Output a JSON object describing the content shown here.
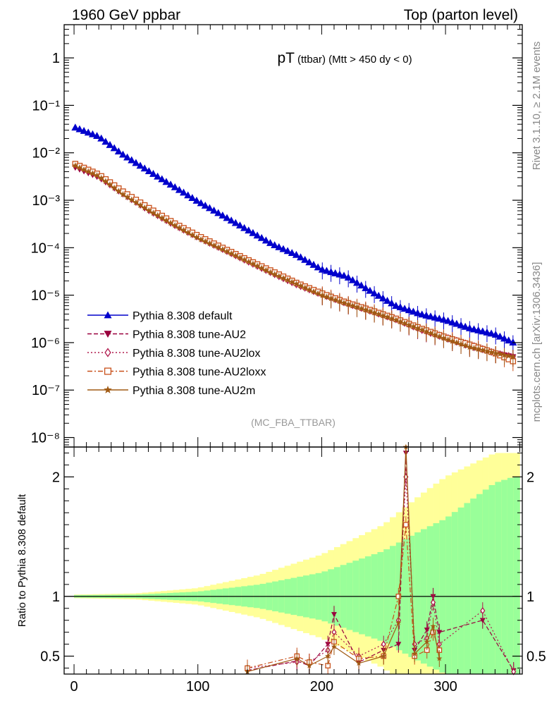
{
  "header": {
    "left": "1960 GeV ppbar",
    "right": "Top (parton level)"
  },
  "side_labels": {
    "rivet": "Rivet 3.1.10, ≥ 2.1M events",
    "mcplots": "mcplots.cern.ch [arXiv:1306.3436]"
  },
  "chart_data": [
    {
      "type": "line",
      "panel": "main",
      "title_main": "pT",
      "title_sub": "(ttbar) (Mtt > 450 dy < 0)",
      "analysis_label": "(MC_FBA_TTBAR)",
      "xlabel": "",
      "ylabel": "",
      "xlim": [
        -8,
        362
      ],
      "ylim_log10": [
        -8.2,
        0.7
      ],
      "log_y": true,
      "y_tick_labels": [
        "1",
        "10⁻¹",
        "10⁻²",
        "10⁻³",
        "10⁻⁴",
        "10⁻⁵",
        "10⁻⁶",
        "10⁻⁷",
        "10⁻⁸"
      ],
      "legend_position": "bottom-left",
      "series": [
        {
          "name": "Pythia 8.308 default",
          "color": "#0000cc",
          "style": "solid",
          "marker": "triangle-up",
          "x": [
            0,
            20,
            40,
            60,
            80,
            100,
            120,
            140,
            160,
            180,
            200,
            220,
            240,
            260,
            280,
            300,
            320,
            340,
            355
          ],
          "y": [
            0.035,
            0.022,
            0.009,
            0.0042,
            0.002,
            0.00095,
            0.00048,
            0.00024,
            0.00012,
            7e-05,
            3.5e-05,
            2.5e-05,
            1.2e-05,
            6e-06,
            4e-06,
            3e-06,
            2e-06,
            1.5e-06,
            1e-06
          ]
        },
        {
          "name": "Pythia 8.308 tune-AU2",
          "color": "#99003d",
          "style": "dashed",
          "marker": "triangle-down",
          "x": [
            0,
            20,
            40,
            60,
            80,
            100,
            120,
            140,
            160,
            180,
            200,
            220,
            240,
            260,
            280,
            300,
            320,
            340,
            355
          ],
          "y": [
            0.005,
            0.003,
            0.0013,
            0.0006,
            0.0003,
            0.00016,
            9e-05,
            5e-05,
            2.8e-05,
            1.6e-05,
            1e-05,
            6.5e-06,
            4.5e-06,
            3e-06,
            1.8e-06,
            1.2e-06,
            8e-07,
            6e-07,
            5e-07
          ]
        },
        {
          "name": "Pythia 8.308 tune-AU2lox",
          "color": "#b01a4d",
          "style": "dotted",
          "marker": "diamond",
          "x": [
            0,
            20,
            40,
            60,
            80,
            100,
            120,
            140,
            160,
            180,
            200,
            220,
            240,
            260,
            280,
            300,
            320,
            340,
            355
          ],
          "y": [
            0.0058,
            0.0033,
            0.0014,
            0.00065,
            0.00032,
            0.00017,
            9.5e-05,
            5.3e-05,
            3e-05,
            1.7e-05,
            1.05e-05,
            6.8e-06,
            4.6e-06,
            3.1e-06,
            1.9e-06,
            1.3e-06,
            9e-07,
            6e-07,
            5e-07
          ]
        },
        {
          "name": "Pythia 8.308 tune-AU2loxx",
          "color": "#c8501a",
          "style": "dashdot",
          "marker": "square",
          "x": [
            0,
            20,
            40,
            60,
            80,
            100,
            120,
            140,
            160,
            180,
            200,
            220,
            240,
            260,
            280,
            300,
            320,
            340,
            355
          ],
          "y": [
            0.006,
            0.0035,
            0.0015,
            0.0007,
            0.00034,
            0.00018,
            0.0001,
            5.6e-05,
            3.2e-05,
            1.8e-05,
            1.1e-05,
            7e-06,
            4.8e-06,
            3.2e-06,
            2e-06,
            1.3e-06,
            9e-07,
            6e-07,
            4e-07
          ]
        },
        {
          "name": "Pythia 8.308 tune-AU2m",
          "color": "#a05a14",
          "style": "solid",
          "marker": "star",
          "x": [
            0,
            20,
            40,
            60,
            80,
            100,
            120,
            140,
            160,
            180,
            200,
            220,
            240,
            260,
            280,
            300,
            320,
            340,
            355
          ],
          "y": [
            0.0055,
            0.0032,
            0.0013,
            0.00062,
            0.00031,
            0.00016,
            9.2e-05,
            5.2e-05,
            2.9e-05,
            1.7e-05,
            1e-05,
            6.6e-06,
            4.5e-06,
            3e-06,
            1.9e-06,
            1.2e-06,
            8e-07,
            6e-07,
            5e-07
          ]
        }
      ]
    },
    {
      "type": "line",
      "panel": "ratio",
      "xlabel": "",
      "ylabel": "Ratio to Pythia 8.308 default",
      "xlim": [
        -8,
        362
      ],
      "ylim": [
        0.35,
        2.25
      ],
      "x_tick_labels": [
        "0",
        "100",
        "200",
        "300"
      ],
      "y_tick_labels": [
        "0.5",
        "1",
        "2"
      ],
      "band_inner_color": "#99ff99",
      "band_outer_color": "#ffff99",
      "band": {
        "x": [
          0,
          50,
          100,
          150,
          200,
          250,
          280,
          300,
          320,
          340,
          355
        ],
        "inner": [
          0.01,
          0.015,
          0.04,
          0.1,
          0.2,
          0.38,
          0.55,
          0.65,
          0.8,
          0.95,
          1.0
        ],
        "outer": [
          0.015,
          0.025,
          0.07,
          0.18,
          0.35,
          0.6,
          0.85,
          1.0,
          1.1,
          1.2,
          1.2
        ]
      },
      "series": [
        {
          "name": "Pythia 8.308 tune-AU2",
          "color": "#99003d",
          "x": [
            140,
            180,
            190,
            205,
            210,
            230,
            250,
            262,
            268,
            275,
            285,
            290,
            295,
            330,
            355
          ],
          "y": [
            0.38,
            0.46,
            0.42,
            0.6,
            0.85,
            0.45,
            0.55,
            0.6,
            2.2,
            0.55,
            0.72,
            1.0,
            0.7,
            0.8,
            0.38
          ]
        },
        {
          "name": "Pythia 8.308 tune-AU2lox",
          "color": "#b01a4d",
          "x": [
            140,
            180,
            190,
            205,
            210,
            230,
            250,
            262,
            268,
            275,
            285,
            290,
            295,
            330,
            355
          ],
          "y": [
            0.4,
            0.45,
            0.45,
            0.55,
            0.7,
            0.5,
            0.6,
            0.8,
            2.0,
            0.6,
            0.65,
            0.95,
            0.6,
            0.88,
            0.37
          ]
        },
        {
          "name": "Pythia 8.308 tune-AU2loxx",
          "color": "#c8501a",
          "x": [
            140,
            180,
            190,
            205,
            210,
            230,
            250,
            262,
            268,
            275,
            285,
            290,
            295
          ],
          "y": [
            0.4,
            0.5,
            0.45,
            0.42,
            0.62,
            0.48,
            0.5,
            1.0,
            1.6,
            0.5,
            0.55,
            0.7,
            0.55
          ]
        },
        {
          "name": "Pythia 8.308 tune-AU2m",
          "color": "#a05a14",
          "x": [
            140,
            180,
            190,
            205,
            210,
            230,
            250,
            262,
            268,
            275,
            285,
            290,
            295
          ],
          "y": [
            0.37,
            0.48,
            0.42,
            0.5,
            0.58,
            0.44,
            0.5,
            0.78,
            2.25,
            0.52,
            0.62,
            0.75,
            0.48
          ]
        }
      ]
    }
  ]
}
